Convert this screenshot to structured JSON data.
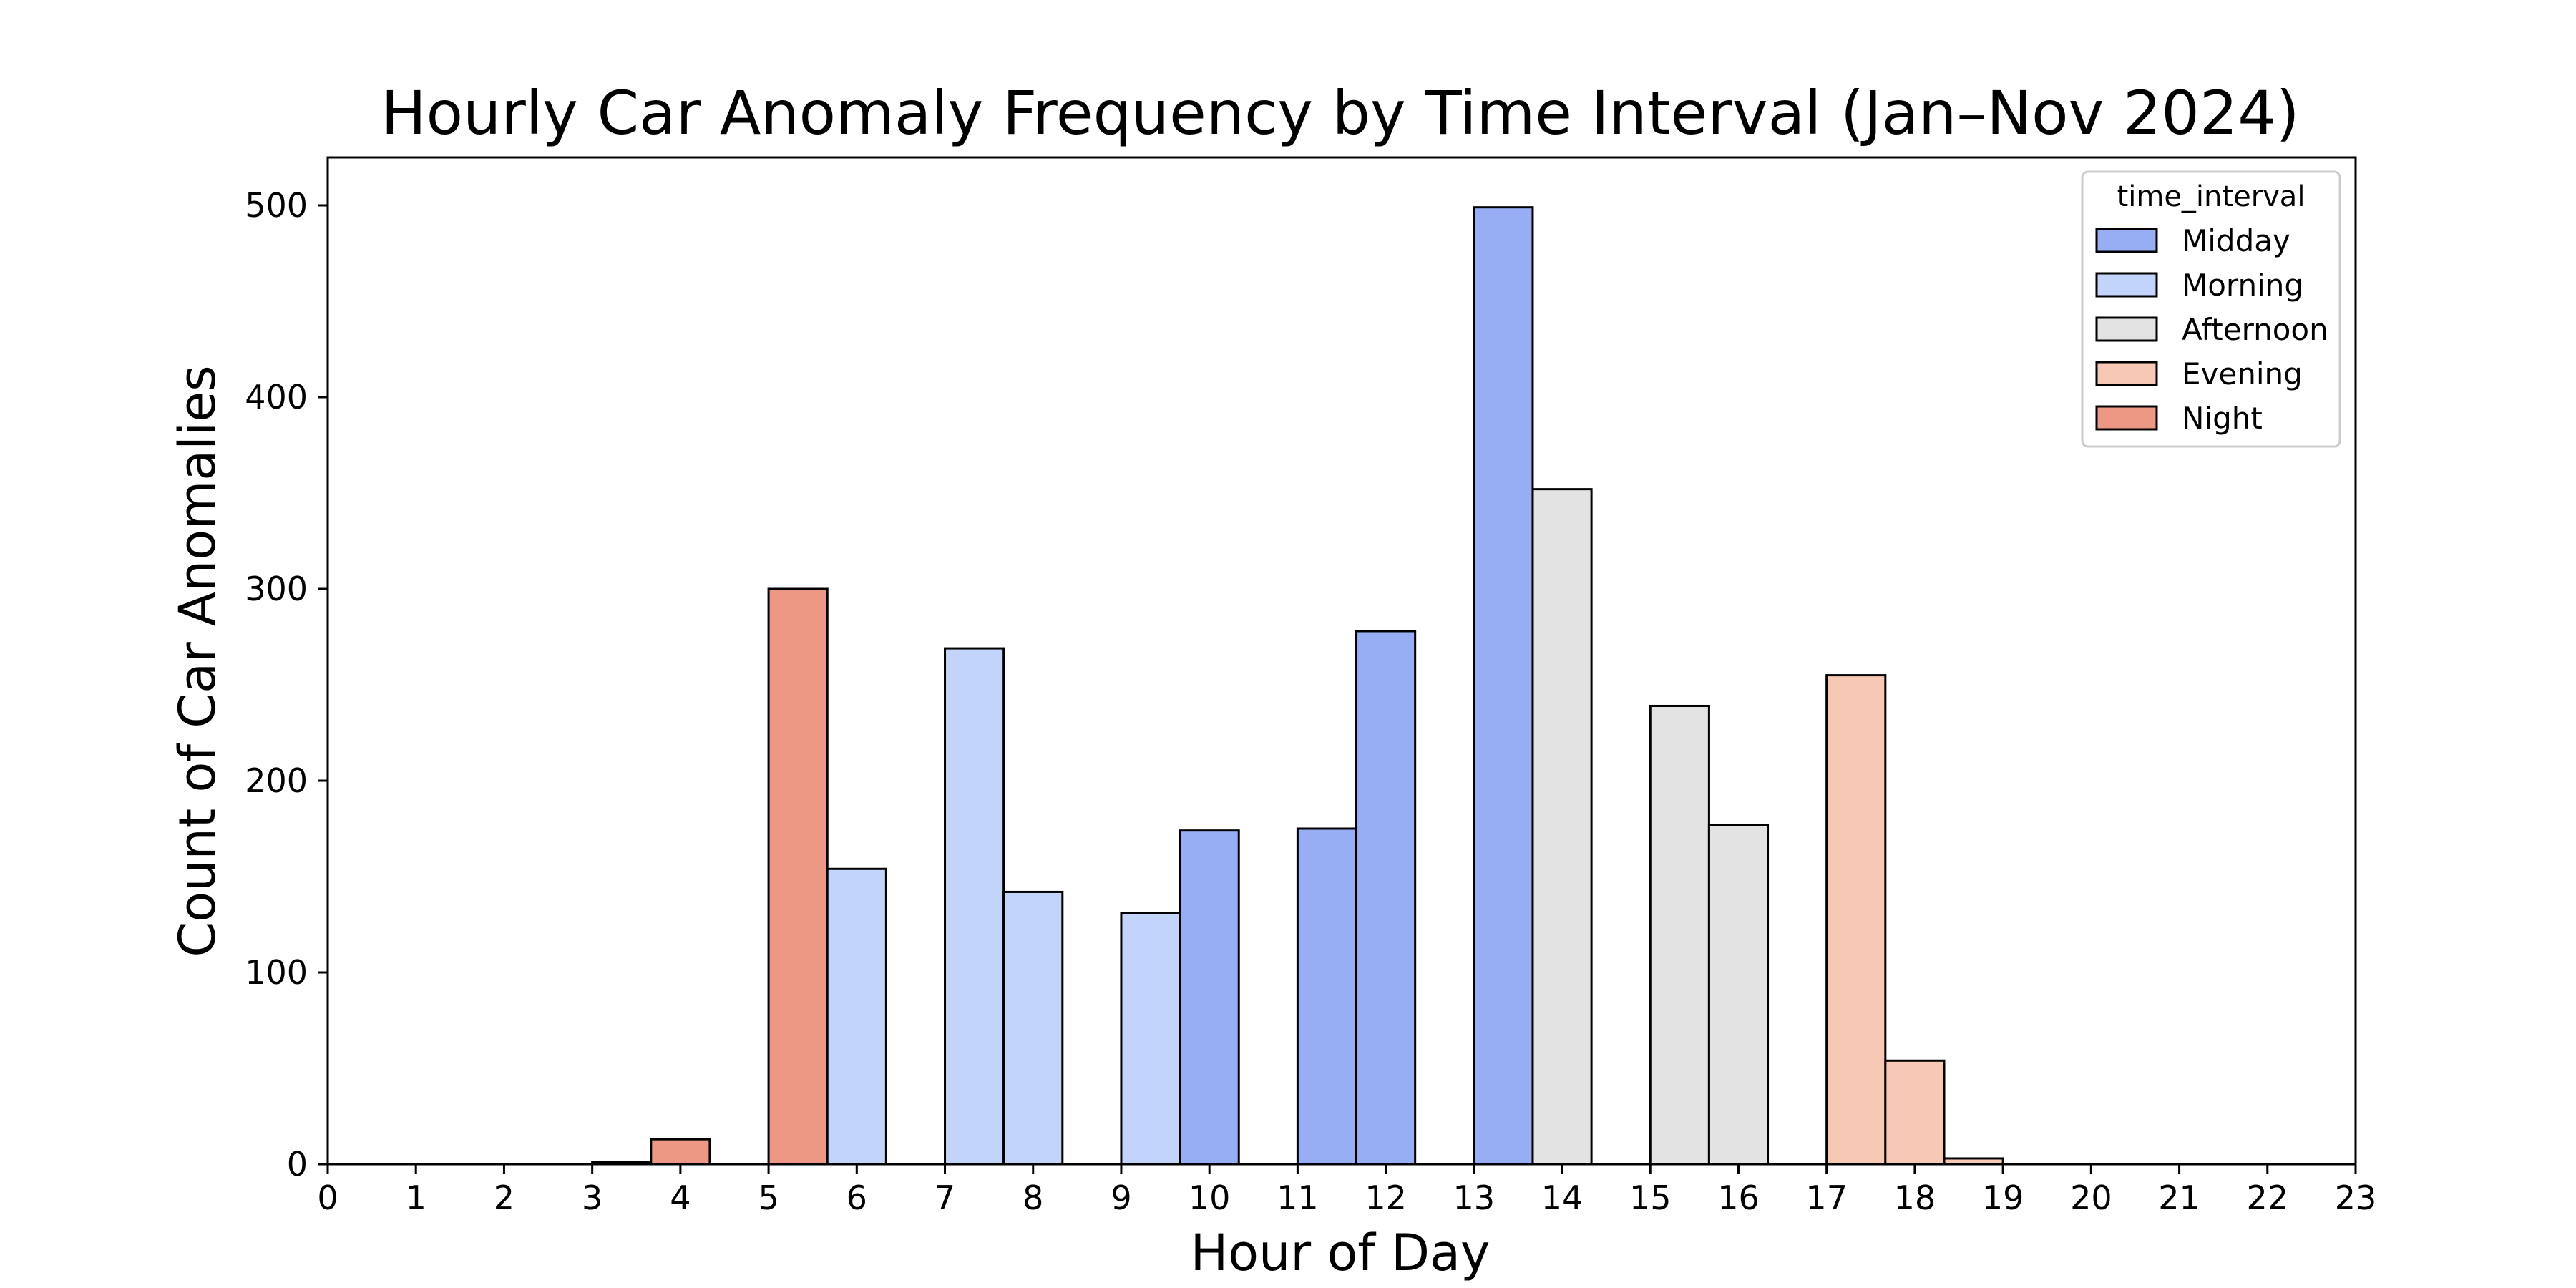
{
  "chart_data": {
    "type": "bar",
    "title": "Hourly Car Anomaly Frequency by Time Interval (Jan–Nov 2024)",
    "xlabel": "Hour of Day",
    "ylabel": "Count of Car Anomalies",
    "xlim": [
      0,
      23
    ],
    "ylim": [
      0,
      525
    ],
    "x_ticks": [
      "0",
      "1",
      "2",
      "3",
      "4",
      "5",
      "6",
      "7",
      "8",
      "9",
      "10",
      "11",
      "12",
      "13",
      "14",
      "15",
      "16",
      "17",
      "18",
      "19",
      "20",
      "21",
      "22",
      "23"
    ],
    "y_ticks": [
      "0",
      "100",
      "200",
      "300",
      "400",
      "500"
    ],
    "grid": false,
    "legend": {
      "title": "time_interval",
      "placement": "top-right",
      "items": [
        {
          "name": "Midday",
          "color": "#97AEF5"
        },
        {
          "name": "Morning",
          "color": "#C2D4FA"
        },
        {
          "name": "Afternoon",
          "color": "#E3E3E3"
        },
        {
          "name": "Evening",
          "color": "#F7C8B3"
        },
        {
          "name": "Night",
          "color": "#EC9885"
        }
      ]
    },
    "bin_width": 0.6667,
    "bars": [
      {
        "x_start": 3.0,
        "x_end": 3.6667,
        "series": "Night",
        "value": 1
      },
      {
        "x_start": 3.6667,
        "x_end": 4.3333,
        "series": "Night",
        "value": 13
      },
      {
        "x_start": 5.0,
        "x_end": 5.6667,
        "series": "Night",
        "value": 300
      },
      {
        "x_start": 5.6667,
        "x_end": 6.3333,
        "series": "Morning",
        "value": 154
      },
      {
        "x_start": 7.0,
        "x_end": 7.6667,
        "series": "Morning",
        "value": 269
      },
      {
        "x_start": 7.6667,
        "x_end": 8.3333,
        "series": "Morning",
        "value": 142
      },
      {
        "x_start": 9.0,
        "x_end": 9.6667,
        "series": "Morning",
        "value": 131
      },
      {
        "x_start": 9.6667,
        "x_end": 10.3333,
        "series": "Midday",
        "value": 174
      },
      {
        "x_start": 11.0,
        "x_end": 11.6667,
        "series": "Midday",
        "value": 175
      },
      {
        "x_start": 11.6667,
        "x_end": 12.3333,
        "series": "Midday",
        "value": 278
      },
      {
        "x_start": 13.0,
        "x_end": 13.6667,
        "series": "Midday",
        "value": 499
      },
      {
        "x_start": 13.6667,
        "x_end": 14.3333,
        "series": "Afternoon",
        "value": 352
      },
      {
        "x_start": 15.0,
        "x_end": 15.6667,
        "series": "Afternoon",
        "value": 239
      },
      {
        "x_start": 15.6667,
        "x_end": 16.3333,
        "series": "Afternoon",
        "value": 177
      },
      {
        "x_start": 17.0,
        "x_end": 17.6667,
        "series": "Evening",
        "value": 255
      },
      {
        "x_start": 17.6667,
        "x_end": 18.3333,
        "series": "Evening",
        "value": 54
      },
      {
        "x_start": 18.3333,
        "x_end": 19.0,
        "series": "Evening",
        "value": 3
      }
    ]
  }
}
